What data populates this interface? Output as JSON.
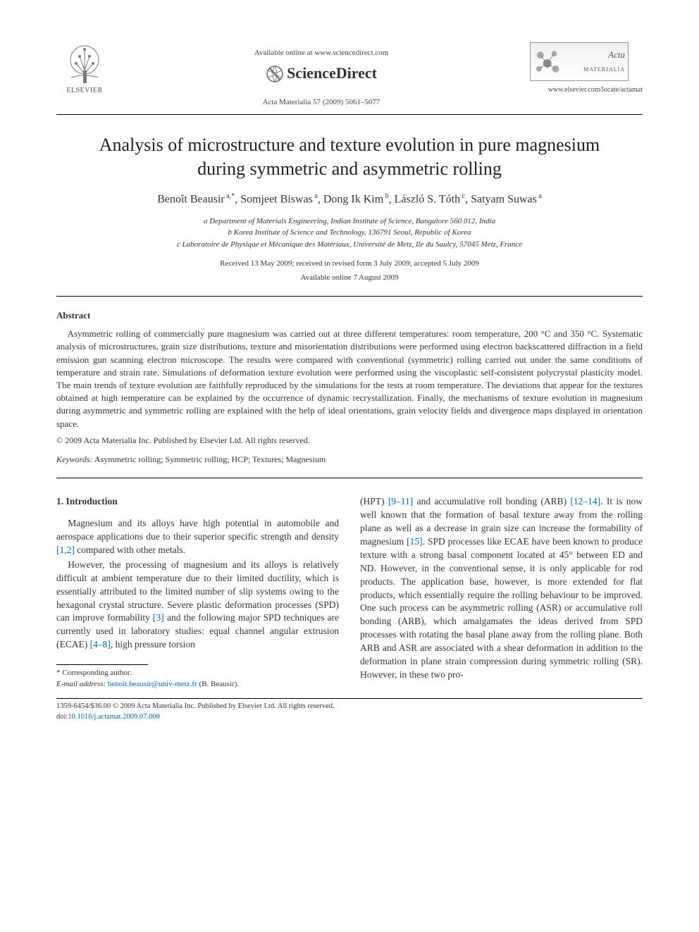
{
  "header": {
    "elsevier_label": "ELSEVIER",
    "available_online": "Available online at www.sciencedirect.com",
    "sciencedirect_label": "ScienceDirect",
    "journal_reference": "Acta Materialia 57 (2009) 5061–5077",
    "acta_title_prefix": "Acta",
    "acta_title_suffix": "MATERIALIA",
    "journal_url": "www.elsevier.com/locate/actamat"
  },
  "title": "Analysis of microstructure and texture evolution in pure magnesium during symmetric and asymmetric rolling",
  "authors_html": "Benoît Beausir<sup> a,*</sup>, Somjeet Biswas<sup> a</sup>, Dong Ik Kim<sup> b</sup>, László S. Tóth<sup> c</sup>, Satyam Suwas<sup> a</sup>",
  "affiliations": {
    "a": "a Department of Materials Engineering, Indian Institute of Science, Bangalore 560 012, India",
    "b": "b Korea Institute of Science and Technology, 136791 Seoul, Republic of Korea",
    "c": "c Laboratoire de Physique et Mécanique des Matériaux, Université de Metz, Ile du Saulcy, 57045 Metz, France"
  },
  "dates": {
    "received": "Received 13 May 2009; received in revised form 3 July 2009; accepted 5 July 2009",
    "online": "Available online 7 August 2009"
  },
  "abstract": {
    "heading": "Abstract",
    "body": "Asymmetric rolling of commercially pure magnesium was carried out at three different temperatures: room temperature, 200 °C and 350 °C. Systematic analysis of microstructures, grain size distributions, texture and misorientation distributions were performed using electron backscattered diffraction in a field emission gun scanning electron microscope. The results were compared with conventional (symmetric) rolling carried out under the same conditions of temperature and strain rate. Simulations of deformation texture evolution were performed using the viscoplastic self-consistent polycrystal plasticity model. The main trends of texture evolution are faithfully reproduced by the simulations for the tests at room temperature. The deviations that appear for the textures obtained at high temperature can be explained by the occurrence of dynamic recrystallization. Finally, the mechanisms of texture evolution in magnesium during asymmetric and symmetric rolling are explained with the help of ideal orientations, grain velocity fields and divergence maps displayed in orientation space.",
    "copyright": "© 2009 Acta Materialia Inc. Published by Elsevier Ltd. All rights reserved."
  },
  "keywords": {
    "label": "Keywords:",
    "list": "Asymmetric rolling; Symmetric rolling; HCP; Textures; Magnesium"
  },
  "section1": {
    "heading": "1. Introduction",
    "para1": "Magnesium and its alloys have high potential in automobile and aerospace applications due to their superior specific strength and density [1,2] compared with other metals.",
    "para2": "However, the processing of magnesium and its alloys is relatively difficult at ambient temperature due to their limited ductility, which is essentially attributed to the limited number of slip systems owing to the hexagonal crystal structure. Severe plastic deformation processes (SPD) can improve formability [3] and the following major SPD techniques are currently used in laboratory studies: equal channel angular extrusion (ECAE) [4–8], high pressure torsion",
    "para3": "(HPT) [9–11] and accumulative roll bonding (ARB) [12–14]. It is now well known that the formation of basal texture away from the rolling plane as well as a decrease in grain size can increase the formability of magnesium [15]. SPD processes like ECAE have been known to produce texture with a strong basal component located at 45° between ED and ND. However, in the conventional sense, it is only applicable for rod products. The application base, however, is more extended for flat products, which essentially require the rolling behaviour to be improved. One such process can be asymmetric rolling (ASR) or accumulative roll bonding (ARB), which amalgamates the ideas derived from SPD processes with rotating the basal plane away from the rolling plane. Both ARB and ASR are associated with a shear deformation in addition to the deformation in plane strain compression during symmetric rolling (SR). However, in these two pro-"
  },
  "footer": {
    "corresponding": "* Corresponding author.",
    "email_label": "E-mail address:",
    "email": "benoit.beausir@univ-metz.fr",
    "email_name": "(B. Beausir).",
    "issn": "1359-6454/$36.00 © 2009 Acta Materialia Inc. Published by Elsevier Ltd. All rights reserved.",
    "doi_label": "doi:",
    "doi": "10.1016/j.actamat.2009.07.008"
  },
  "colors": {
    "link": "#0066aa",
    "text": "#333333",
    "rule": "#000000"
  }
}
